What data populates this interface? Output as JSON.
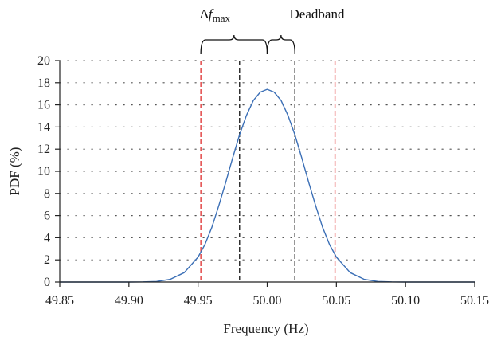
{
  "chart_data": {
    "type": "line",
    "xlabel": "Frequency (Hz)",
    "ylabel": "PDF (%)",
    "xlim": [
      49.85,
      50.15
    ],
    "ylim": [
      0,
      20
    ],
    "x_ticks": [
      "49.85",
      "49.90",
      "49.95",
      "50.00",
      "50.05",
      "50.10",
      "50.15"
    ],
    "y_ticks": [
      "0",
      "2",
      "4",
      "6",
      "8",
      "10",
      "12",
      "14",
      "16",
      "18",
      "20"
    ],
    "grid": "dotted",
    "series": [
      {
        "color": "#3b6fb6",
        "x": [
          49.85,
          49.86,
          49.87,
          49.88,
          49.89,
          49.9,
          49.91,
          49.92,
          49.93,
          49.94,
          49.95,
          49.955,
          49.96,
          49.965,
          49.97,
          49.975,
          49.98,
          49.985,
          49.99,
          49.995,
          50.0,
          50.005,
          50.01,
          50.015,
          50.02,
          50.025,
          50.03,
          50.035,
          50.04,
          50.045,
          50.05,
          50.06,
          50.07,
          50.08,
          50.09,
          50.1,
          50.11,
          50.12,
          50.13,
          50.14,
          50.15
        ],
        "y": [
          0,
          0,
          0,
          0,
          0,
          0.001,
          0.01,
          0.05,
          0.25,
          0.85,
          2.25,
          3.4,
          4.95,
          6.9,
          9.0,
          11.2,
          13.3,
          15.05,
          16.4,
          17.15,
          17.4,
          17.15,
          16.4,
          15.05,
          13.3,
          11.2,
          9.0,
          6.9,
          4.95,
          3.4,
          2.25,
          0.85,
          0.25,
          0.05,
          0.01,
          0.001,
          0,
          0,
          0,
          0,
          0
        ]
      }
    ],
    "vertical_lines": [
      {
        "x": 49.952,
        "color": "#e03c3c"
      },
      {
        "x": 49.98,
        "color": "#222222"
      },
      {
        "x": 50.02,
        "color": "#222222"
      },
      {
        "x": 50.049,
        "color": "#e03c3c"
      }
    ],
    "annotations": {
      "delta": "Δ",
      "f": "f",
      "max": "max",
      "deadband": "Deadband"
    }
  }
}
